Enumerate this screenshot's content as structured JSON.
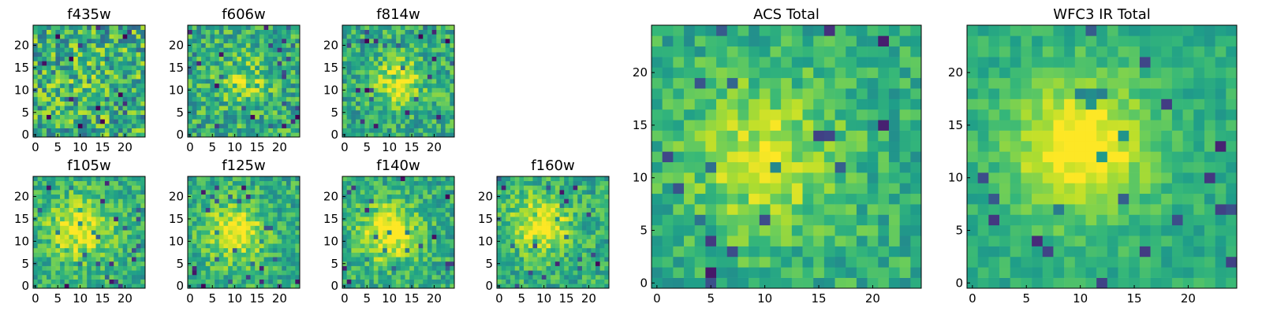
{
  "chart_data": [
    {
      "type": "heatmap",
      "title": "f435w",
      "xticks": [
        "0",
        "5",
        "10",
        "15",
        "20"
      ],
      "yticks": [
        "0",
        "5",
        "10",
        "15",
        "20"
      ],
      "xlim": [
        0,
        24
      ],
      "ylim": [
        0,
        24
      ],
      "grid_size": 25,
      "colormap": "viridis",
      "blob": {
        "cx": 12,
        "cy": 12,
        "amplitude": 0.05,
        "sigma": 5
      },
      "noise": 0.3,
      "seed": 11
    },
    {
      "type": "heatmap",
      "title": "f606w",
      "xticks": [
        "0",
        "5",
        "10",
        "15",
        "20"
      ],
      "yticks": [
        "0",
        "5",
        "10",
        "15",
        "20"
      ],
      "xlim": [
        0,
        24
      ],
      "ylim": [
        0,
        24
      ],
      "grid_size": 25,
      "colormap": "viridis",
      "blob": {
        "cx": 12,
        "cy": 12,
        "amplitude": 0.2,
        "sigma": 4
      },
      "noise": 0.22,
      "seed": 22
    },
    {
      "type": "heatmap",
      "title": "f814w",
      "xticks": [
        "0",
        "5",
        "10",
        "15",
        "20"
      ],
      "yticks": [
        "0",
        "5",
        "10",
        "15",
        "20"
      ],
      "xlim": [
        0,
        24
      ],
      "ylim": [
        0,
        24
      ],
      "grid_size": 25,
      "colormap": "viridis",
      "blob": {
        "cx": 12,
        "cy": 12,
        "amplitude": 0.35,
        "sigma": 3.5
      },
      "noise": 0.2,
      "seed": 33
    },
    {
      "type": "heatmap",
      "title": "f105w",
      "xticks": [
        "0",
        "5",
        "10",
        "15",
        "20"
      ],
      "yticks": [
        "0",
        "5",
        "10",
        "15",
        "20"
      ],
      "xlim": [
        0,
        24
      ],
      "ylim": [
        0,
        24
      ],
      "grid_size": 25,
      "colormap": "viridis",
      "blob": {
        "cx": 10,
        "cy": 13,
        "amplitude": 0.35,
        "sigma": 5
      },
      "noise": 0.18,
      "seed": 44
    },
    {
      "type": "heatmap",
      "title": "f125w",
      "xticks": [
        "0",
        "5",
        "10",
        "15",
        "20"
      ],
      "yticks": [
        "0",
        "5",
        "10",
        "15",
        "20"
      ],
      "xlim": [
        0,
        24
      ],
      "ylim": [
        0,
        24
      ],
      "grid_size": 25,
      "colormap": "viridis",
      "blob": {
        "cx": 10,
        "cy": 12,
        "amplitude": 0.4,
        "sigma": 4.5
      },
      "noise": 0.18,
      "seed": 55
    },
    {
      "type": "heatmap",
      "title": "f140w",
      "xticks": [
        "0",
        "5",
        "10",
        "15",
        "20"
      ],
      "yticks": [
        "0",
        "5",
        "10",
        "15",
        "20"
      ],
      "xlim": [
        0,
        24
      ],
      "ylim": [
        0,
        24
      ],
      "grid_size": 25,
      "colormap": "viridis",
      "blob": {
        "cx": 10,
        "cy": 12,
        "amplitude": 0.4,
        "sigma": 4.5
      },
      "noise": 0.18,
      "seed": 66
    },
    {
      "type": "heatmap",
      "title": "f160w",
      "xticks": [
        "0",
        "5",
        "10",
        "15",
        "20"
      ],
      "yticks": [
        "0",
        "5",
        "10",
        "15",
        "20"
      ],
      "xlim": [
        0,
        24
      ],
      "ylim": [
        0,
        24
      ],
      "grid_size": 25,
      "colormap": "viridis",
      "blob": {
        "cx": 9,
        "cy": 14,
        "amplitude": 0.4,
        "sigma": 4.5
      },
      "noise": 0.18,
      "seed": 77
    },
    {
      "type": "heatmap",
      "title": "ACS Total",
      "xticks": [
        "0",
        "5",
        "10",
        "15",
        "20"
      ],
      "yticks": [
        "0",
        "5",
        "10",
        "15",
        "20"
      ],
      "xlim": [
        0,
        24
      ],
      "ylim": [
        0,
        24
      ],
      "grid_size": 25,
      "colormap": "viridis",
      "blob": {
        "cx": 10,
        "cy": 12,
        "amplitude": 0.3,
        "sigma": 5
      },
      "noise": 0.15,
      "seed": 88
    },
    {
      "type": "heatmap",
      "title": "WFC3 IR Total",
      "xticks": [
        "0",
        "5",
        "10",
        "15",
        "20"
      ],
      "yticks": [
        "0",
        "5",
        "10",
        "15",
        "20"
      ],
      "xlim": [
        0,
        24
      ],
      "ylim": [
        0,
        24
      ],
      "grid_size": 25,
      "colormap": "viridis",
      "blob": {
        "cx": 10,
        "cy": 13,
        "amplitude": 0.45,
        "sigma": 4.5
      },
      "noise": 0.1,
      "seed": 99
    }
  ],
  "colors": {
    "viridis_stops": [
      "#440154",
      "#482878",
      "#3e4989",
      "#31688e",
      "#26828e",
      "#1f9e89",
      "#35b779",
      "#6ece58",
      "#b5de2b",
      "#fde725"
    ]
  }
}
